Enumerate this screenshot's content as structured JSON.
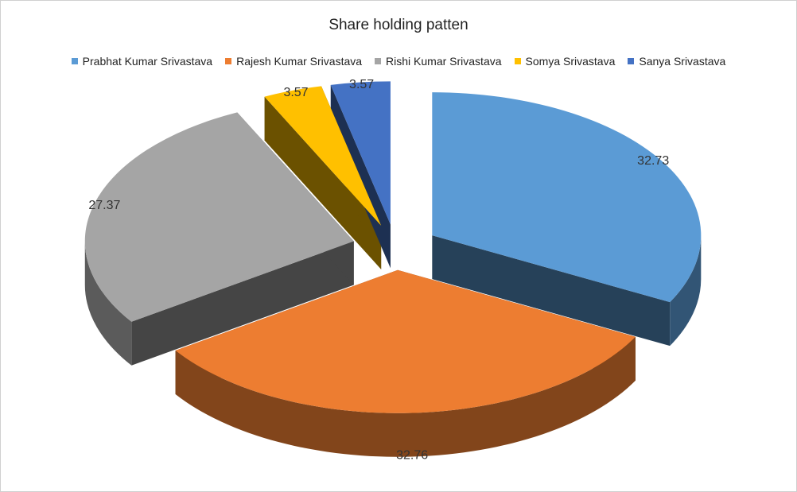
{
  "chart_data": {
    "type": "pie",
    "title": "Share holding patten",
    "legend_position": "top",
    "exploded": true,
    "style": "3d",
    "slices": [
      {
        "label": "Prabhat Kumar Srivastava",
        "value": 32.73,
        "value_label": "32.73",
        "color": "#5B9BD5"
      },
      {
        "label": "Rajesh Kumar Srivastava",
        "value": 32.76,
        "value_label": "32.76",
        "color": "#ED7D31"
      },
      {
        "label": "Rishi Kumar Srivastava",
        "value": 27.37,
        "value_label": "27.37",
        "color": "#A5A5A5"
      },
      {
        "label": "Somya Srivastava",
        "value": 3.57,
        "value_label": "3.57",
        "color": "#FFC000"
      },
      {
        "label": "Sanya Srivastava",
        "value": 3.57,
        "value_label": "3.57",
        "color": "#4472C4"
      }
    ]
  }
}
